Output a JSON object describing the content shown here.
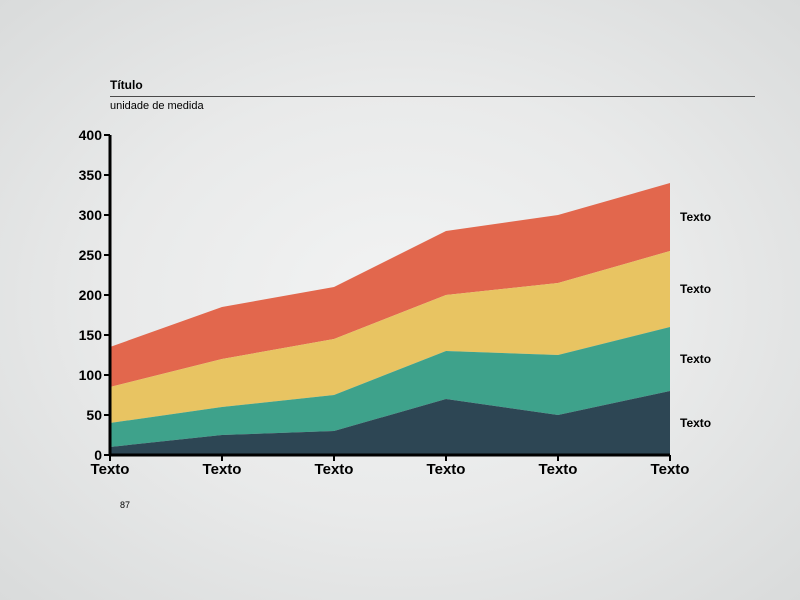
{
  "header": {
    "title": "Título",
    "subtitle": "unidade de medida"
  },
  "page_number": "87",
  "chart": {
    "type": "area-stacked",
    "background_color": "transparent",
    "axis_color": "#000000",
    "axis_width": 3,
    "tick_length": 6,
    "tick_fontsize": 14,
    "xlabel_fontsize": 15,
    "series_label_fontsize": 12,
    "y": {
      "min": 0,
      "max": 400,
      "step": 50,
      "ticks": [
        0,
        50,
        100,
        150,
        200,
        250,
        300,
        350,
        400
      ]
    },
    "x": {
      "categories": [
        "Texto",
        "Texto",
        "Texto",
        "Texto",
        "Texto",
        "Texto"
      ]
    },
    "series": [
      {
        "label": "Texto",
        "color": "#2d4654",
        "values": [
          10,
          25,
          30,
          70,
          50,
          80
        ]
      },
      {
        "label": "Texto",
        "color": "#3ea28b",
        "values": [
          30,
          35,
          45,
          60,
          75,
          80
        ]
      },
      {
        "label": "Texto",
        "color": "#e8c462",
        "values": [
          45,
          60,
          70,
          70,
          90,
          95
        ]
      },
      {
        "label": "Texto",
        "color": "#e2674d",
        "values": [
          50,
          65,
          65,
          80,
          85,
          85
        ]
      }
    ]
  }
}
